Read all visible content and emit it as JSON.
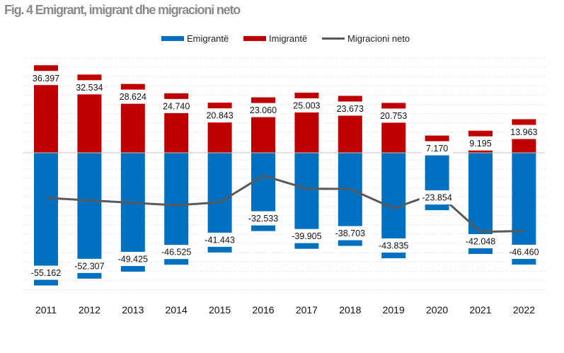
{
  "title": "Fig. 4 Emigrant, imigrant dhe migracioni neto",
  "colors": {
    "emigrante": "#0070c0",
    "imigrante": "#c00000",
    "net": "#595959",
    "title": "#8a8a8a",
    "grid": "#d9d9d9",
    "axis": "#bfbfbf"
  },
  "chart_data": {
    "type": "bar",
    "title": "Fig. 4 Emigrant, imigrant dhe migracioni neto",
    "xlabel": "",
    "ylabel": "",
    "categories": [
      "2011",
      "2012",
      "2013",
      "2014",
      "2015",
      "2016",
      "2017",
      "2018",
      "2019",
      "2020",
      "2021",
      "2022"
    ],
    "series": [
      {
        "name": "Emigrantë",
        "kind": "bar",
        "values": [
          -55162,
          -52307,
          -49425,
          -46525,
          -41443,
          -32533,
          -39905,
          -38703,
          -43835,
          -23854,
          -42048,
          -46460
        ],
        "labels": [
          "-55.162",
          "-52.307",
          "-49.425",
          "-46.525",
          "-41.443",
          "-32.533",
          "-39.905",
          "-38.703",
          "-43.835",
          "-23.854",
          "-42.048",
          "-46.460"
        ]
      },
      {
        "name": "Imigrantë",
        "kind": "bar",
        "values": [
          36397,
          32534,
          28624,
          24740,
          20843,
          23060,
          25003,
          23673,
          20753,
          7170,
          9195,
          13963
        ],
        "labels": [
          "36.397",
          "32.534",
          "28.624",
          "24.740",
          "20.843",
          "23.060",
          "25.003",
          "23.673",
          "20.753",
          "7.170",
          "9.195",
          "13.963"
        ]
      },
      {
        "name": "Migracioni neto",
        "kind": "line",
        "values": [
          -18765,
          -19773,
          -20801,
          -21785,
          -20600,
          -9473,
          -14902,
          -15030,
          -23082,
          -16684,
          -32853,
          -32497
        ]
      }
    ],
    "legend_position": "top-center",
    "grid": true,
    "ylim": [
      -60000,
      40000
    ]
  }
}
